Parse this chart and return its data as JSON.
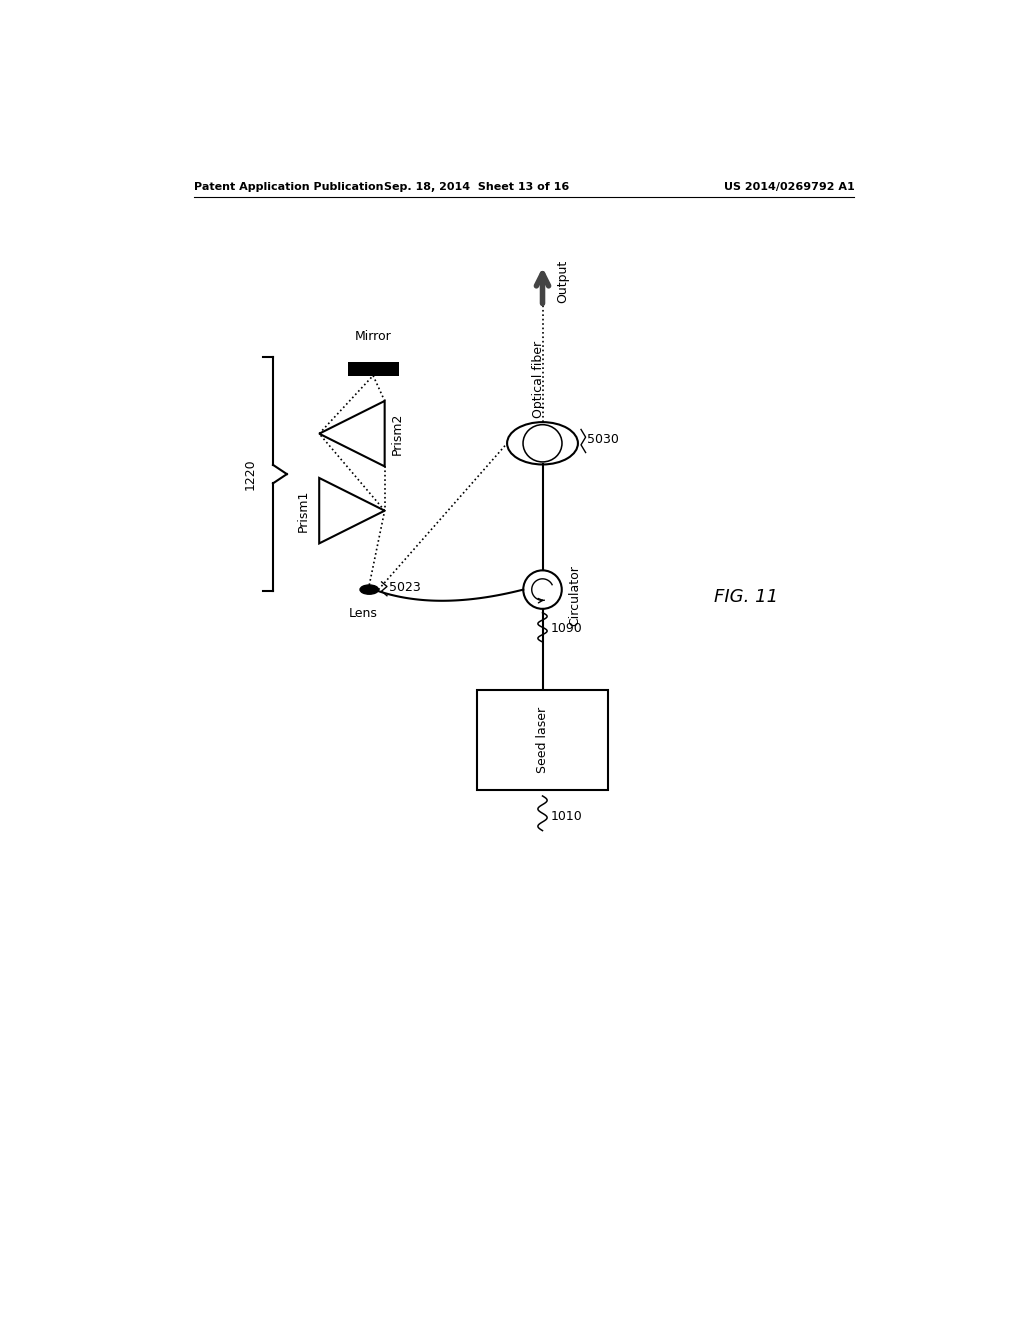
{
  "title": "FIG. 11",
  "header_left": "Patent Application Publication",
  "header_center": "Sep. 18, 2014  Sheet 13 of 16",
  "header_right": "US 2014/0269792 A1",
  "bg_color": "#ffffff",
  "fg_color": "#000000",
  "labels": {
    "mirror": "Mirror",
    "prism1": "Prism1",
    "prism2": "Prism2",
    "lens": "Lens",
    "optical_fiber": "Optical fiber",
    "circulator": "Circulator",
    "seed_laser": "Seed laser",
    "output": "Output",
    "ref_1220": "1220",
    "ref_5030": "5030",
    "ref_5023": "5023",
    "ref_1090": "1090",
    "ref_1010": "1010"
  }
}
